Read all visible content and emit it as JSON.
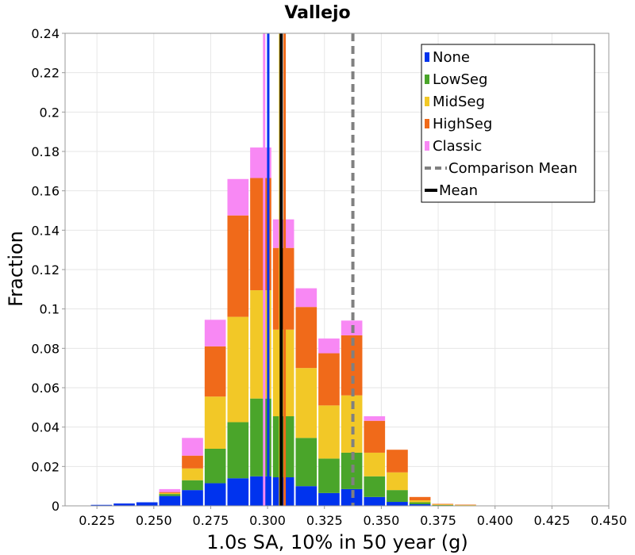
{
  "chart_data": {
    "type": "bar",
    "stacked": true,
    "title": "Vallejo",
    "xlabel": "1.0s SA, 10% in 50 year (g)",
    "ylabel": "Fraction",
    "xlim": [
      0.211,
      0.45
    ],
    "ylim": [
      0,
      0.24
    ],
    "xticks": [
      "0.225",
      "0.250",
      "0.275",
      "0.300",
      "0.325",
      "0.350",
      "0.375",
      "0.400",
      "0.425",
      "0.450"
    ],
    "yticks": [
      "0",
      "0.02",
      "0.04",
      "0.06",
      "0.08",
      "0.1",
      "0.12",
      "0.14",
      "0.16",
      "0.18",
      "0.2",
      "0.22",
      "0.24"
    ],
    "bin_width": 0.01,
    "bin_centers": [
      0.217,
      0.227,
      0.237,
      0.247,
      0.257,
      0.267,
      0.277,
      0.287,
      0.297,
      0.307,
      0.317,
      0.327,
      0.337,
      0.347,
      0.357,
      0.367,
      0.377,
      0.387,
      0.397
    ],
    "series": [
      {
        "name": "None",
        "color": "#0033ee",
        "values": [
          0.0002,
          0.0005,
          0.0012,
          0.0018,
          0.005,
          0.008,
          0.0115,
          0.014,
          0.015,
          0.0145,
          0.01,
          0.0065,
          0.0085,
          0.0045,
          0.002,
          0.0008,
          0.0002,
          0.0001,
          0.0
        ]
      },
      {
        "name": "LowSeg",
        "color": "#4aa52a",
        "values": [
          0.0,
          0.0,
          0.0,
          0.0,
          0.001,
          0.005,
          0.0175,
          0.0285,
          0.0395,
          0.031,
          0.0245,
          0.0175,
          0.0185,
          0.0105,
          0.006,
          0.001,
          0.0002,
          0.0001,
          0.0
        ]
      },
      {
        "name": "MidSeg",
        "color": "#f2c827",
        "values": [
          0.0,
          0.0,
          0.0,
          0.0,
          0.0005,
          0.006,
          0.0265,
          0.0535,
          0.055,
          0.044,
          0.0355,
          0.027,
          0.0291,
          0.012,
          0.009,
          0.001,
          0.0003,
          0.0002,
          0.0
        ]
      },
      {
        "name": "HighSeg",
        "color": "#f06a1a",
        "values": [
          0.0,
          0.0,
          0.0,
          0.0,
          0.0005,
          0.0065,
          0.0255,
          0.0515,
          0.057,
          0.0415,
          0.031,
          0.0265,
          0.0305,
          0.0162,
          0.0115,
          0.0017,
          0.0003,
          0.0002,
          0.0
        ]
      },
      {
        "name": "Classic",
        "color": "#f888f4",
        "values": [
          0.0,
          0.0,
          0.0,
          0.0,
          0.0015,
          0.009,
          0.0135,
          0.0185,
          0.0155,
          0.0145,
          0.0095,
          0.0075,
          0.0075,
          0.0023,
          0.0,
          0.0,
          0.0,
          0.0,
          0.0
        ]
      }
    ],
    "vertical_lines": [
      {
        "name": "Comparison Mean",
        "x": 0.3375,
        "color": "#808080",
        "style": "dashed"
      },
      {
        "name": "Mean",
        "x": 0.306,
        "color": "#000000",
        "style": "solid"
      },
      {
        "name": "None mean",
        "x": 0.3003,
        "color": "#0033ee",
        "style": "solid"
      },
      {
        "name": "MidSeg mean",
        "x": 0.3055,
        "color": "#f2c827",
        "style": "solid"
      },
      {
        "name": "HighSeg mean",
        "x": 0.3075,
        "color": "#f06a1a",
        "style": "solid"
      },
      {
        "name": "Classic mean",
        "x": 0.2985,
        "color": "#f888f4",
        "style": "solid"
      }
    ],
    "legend": {
      "position": "top-right",
      "entries": [
        {
          "label": "None",
          "color": "#0033ee",
          "kind": "patch"
        },
        {
          "label": "LowSeg",
          "color": "#4aa52a",
          "kind": "patch"
        },
        {
          "label": "MidSeg",
          "color": "#f2c827",
          "kind": "patch"
        },
        {
          "label": "HighSeg",
          "color": "#f06a1a",
          "kind": "patch"
        },
        {
          "label": "Classic",
          "color": "#f888f4",
          "kind": "patch"
        },
        {
          "label": "Comparison Mean",
          "color": "#808080",
          "kind": "dashed"
        },
        {
          "label": "Mean",
          "color": "#000000",
          "kind": "solid"
        }
      ]
    },
    "grid": true
  }
}
